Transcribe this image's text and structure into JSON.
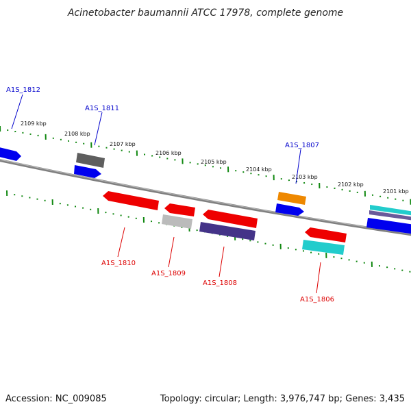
{
  "title": "Acinetobacter baumannii ATCC 17978, complete genome",
  "footer": {
    "accession": "Accession: NC_009085",
    "topology": "Topology: circular; Length: 3,976,747 bp; Genes: 3,435"
  },
  "kbp_labels": [
    "2109 kbp",
    "2108 kbp",
    "2107 kbp",
    "2106 kbp",
    "2105 kbp",
    "2104 kbp",
    "2103 kbp",
    "2102 kbp",
    "2101 kbp"
  ],
  "gene_labels": {
    "g1812": "A1S_1812",
    "g1811": "A1S_1811",
    "g1807": "A1S_1807",
    "g1810": "A1S_1810",
    "g1809": "A1S_1809",
    "g1808": "A1S_1808",
    "g1806": "A1S_1806"
  },
  "colors": {
    "forward_label": "#0000cc",
    "reverse_label": "#dd0000",
    "tick": "#118811",
    "backbone": "#808080",
    "blue": "#0000ee",
    "red": "#ee0000",
    "gray": "#666666",
    "lightgray": "#bbbbbb",
    "orange": "#ee8800",
    "navy": "#443388",
    "cyan": "#22cccc"
  }
}
